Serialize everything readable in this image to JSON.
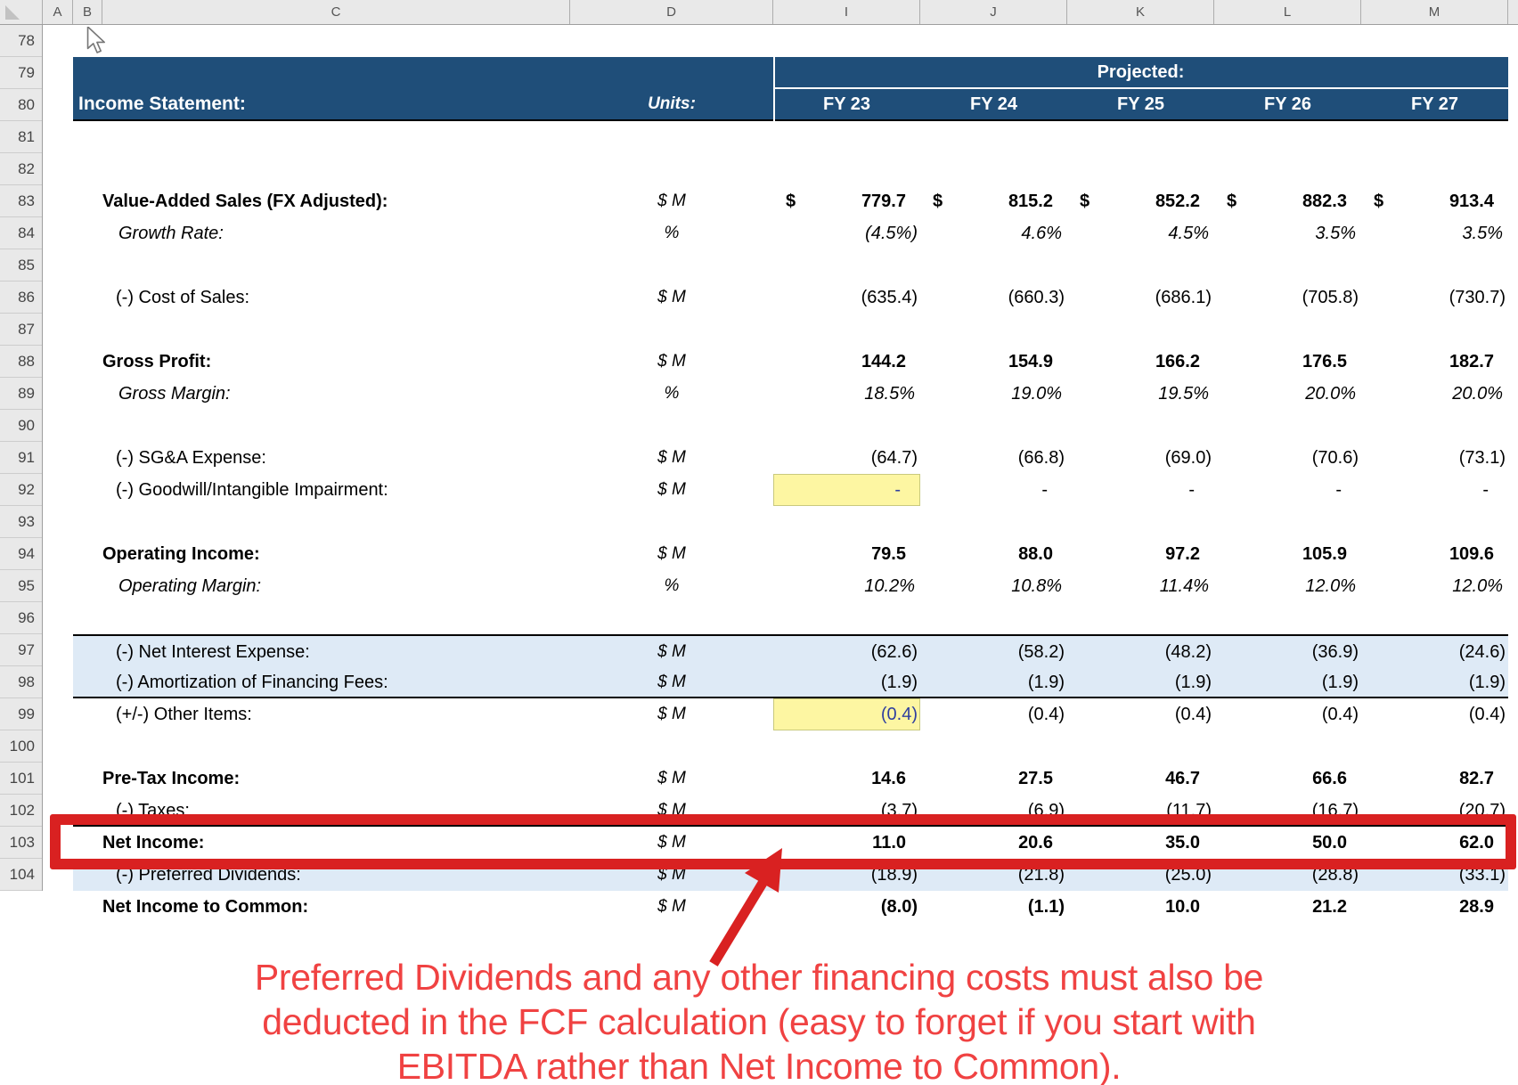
{
  "colors": {
    "navy": "#1F4E79",
    "light_blue": "#DEEAF6",
    "input_yellow": "#FDF6A2",
    "yellow_border": "#C9C97E",
    "input_blue": "#2F3F9F",
    "red": "#D92121",
    "red_text": "#F04242",
    "header_bg": "#E9E9E9",
    "header_border": "#9E9E9E",
    "header_tick": "#ADADAD",
    "tri_grey": "#C2C2C2",
    "row_divider": "#CDCDCD",
    "letter_color": "#555555",
    "number_color": "#454545"
  },
  "grid": {
    "column_letters": [
      "A",
      "B",
      "C",
      "D",
      "I",
      "J",
      "K",
      "L",
      "M"
    ],
    "row_numbers": [
      78,
      79,
      80,
      81,
      82,
      83,
      84,
      85,
      86,
      87,
      88,
      89,
      90,
      91,
      92,
      93,
      94,
      95,
      96,
      97,
      98,
      99,
      100,
      101,
      102,
      103,
      104
    ]
  },
  "header": {
    "projected_label": "Projected:",
    "title": "Income Statement:",
    "units_label": "Units:",
    "years": [
      "FY 23",
      "FY 24",
      "FY 25",
      "FY 26",
      "FY 27"
    ]
  },
  "sheet": {
    "rows": [
      {
        "num": 78,
        "type": "blank"
      },
      {
        "num": 81,
        "type": "blank"
      },
      {
        "num": 82,
        "label": "Value-Added Sales (FX Adjusted):",
        "indent": "bold",
        "units": "$ M",
        "values": [
          "779.7",
          "815.2",
          "852.2",
          "882.3",
          "913.4"
        ],
        "vstyle": "bold",
        "dollar": true
      },
      {
        "num": 83,
        "label": "Growth Rate:",
        "indent": "sub",
        "units": "%",
        "values": [
          "(4.5%)",
          "4.6%",
          "4.5%",
          "3.5%",
          "3.5%"
        ],
        "vstyle": "italic"
      },
      {
        "num": 84,
        "type": "blank"
      },
      {
        "num": 85,
        "label": "(-) Cost of Sales:",
        "indent": "item",
        "units": "$ M",
        "values": [
          "(635.4)",
          "(660.3)",
          "(686.1)",
          "(705.8)",
          "(730.7)"
        ]
      },
      {
        "num": 86,
        "type": "blank"
      },
      {
        "num": 87,
        "label": "Gross Profit:",
        "indent": "bold",
        "units": "$ M",
        "values": [
          "144.2",
          "154.9",
          "166.2",
          "176.5",
          "182.7"
        ],
        "vstyle": "bold"
      },
      {
        "num": 88,
        "label": "Gross Margin:",
        "indent": "sub",
        "units": "%",
        "values": [
          "18.5%",
          "19.0%",
          "19.5%",
          "20.0%",
          "20.0%"
        ],
        "vstyle": "italic"
      },
      {
        "num": 89,
        "type": "blank"
      },
      {
        "num": 90,
        "label": "(-) SG&A Expense:",
        "indent": "item",
        "units": "$ M",
        "values": [
          "(64.7)",
          "(66.8)",
          "(69.0)",
          "(70.6)",
          "(73.1)"
        ]
      },
      {
        "num": 91,
        "label": "(-) Goodwill/Intangible Impairment:",
        "indent": "item",
        "units": "$ M",
        "values": [
          "-",
          "-",
          "-",
          "-",
          "-"
        ],
        "yellow_first": true
      },
      {
        "num": 92,
        "type": "blank"
      },
      {
        "num": 93,
        "label": "Operating Income:",
        "indent": "bold",
        "units": "$ M",
        "values": [
          "79.5",
          "88.0",
          "97.2",
          "105.9",
          "109.6"
        ],
        "vstyle": "bold"
      },
      {
        "num": 94,
        "label": "Operating Margin:",
        "indent": "sub",
        "units": "%",
        "values": [
          "10.2%",
          "10.8%",
          "11.4%",
          "12.0%",
          "12.0%"
        ],
        "vstyle": "italic"
      },
      {
        "num": 95,
        "type": "blank"
      },
      {
        "num": 96,
        "label": "(-) Net Interest Expense:",
        "indent": "item",
        "units": "$ M",
        "values": [
          "(62.6)",
          "(58.2)",
          "(48.2)",
          "(36.9)",
          "(24.6)"
        ],
        "bg": "blue",
        "border_top": true
      },
      {
        "num": 97,
        "label": "(-) Amortization of Financing Fees:",
        "indent": "item",
        "units": "$ M",
        "values": [
          "(1.9)",
          "(1.9)",
          "(1.9)",
          "(1.9)",
          "(1.9)"
        ],
        "bg": "blue",
        "border_bottom": true
      },
      {
        "num": 98,
        "label": "(+/-) Other Items:",
        "indent": "item",
        "units": "$ M",
        "values": [
          "(0.4)",
          "(0.4)",
          "(0.4)",
          "(0.4)",
          "(0.4)"
        ],
        "yellow_first": true
      },
      {
        "num": 99,
        "type": "blank"
      },
      {
        "num": 100,
        "label": "Pre-Tax Income:",
        "indent": "bold",
        "units": "$ M",
        "values": [
          "14.6",
          "27.5",
          "46.7",
          "66.6",
          "82.7"
        ],
        "vstyle": "bold"
      },
      {
        "num": 101,
        "label": "(-) Taxes:",
        "indent": "item",
        "units": "$ M",
        "values": [
          "(3.7)",
          "(6.9)",
          "(11.7)",
          "(16.7)",
          "(20.7)"
        ],
        "border_bottom": true
      },
      {
        "num": 102,
        "label": "Net Income:",
        "indent": "bold",
        "units": "$ M",
        "values": [
          "11.0",
          "20.6",
          "35.0",
          "50.0",
          "62.0"
        ],
        "vstyle": "bold"
      },
      {
        "num": 103,
        "label": "(-) Preferred Dividends:",
        "indent": "item",
        "units": "$ M",
        "values": [
          "(18.9)",
          "(21.8)",
          "(25.0)",
          "(28.8)",
          "(33.1)"
        ],
        "bg": "blue"
      },
      {
        "num": 104,
        "label": "Net Income to Common:",
        "indent": "bold",
        "units": "$ M",
        "values": [
          "(8.0)",
          "(1.1)",
          "10.0",
          "21.2",
          "28.9"
        ],
        "vstyle": "bold"
      }
    ]
  },
  "annotation": {
    "lines": [
      "Preferred Dividends and any other financing costs must also be",
      "deducted in the FCF calculation (easy to forget if you start with",
      "EBITDA rather than Net Income to Common)."
    ]
  }
}
